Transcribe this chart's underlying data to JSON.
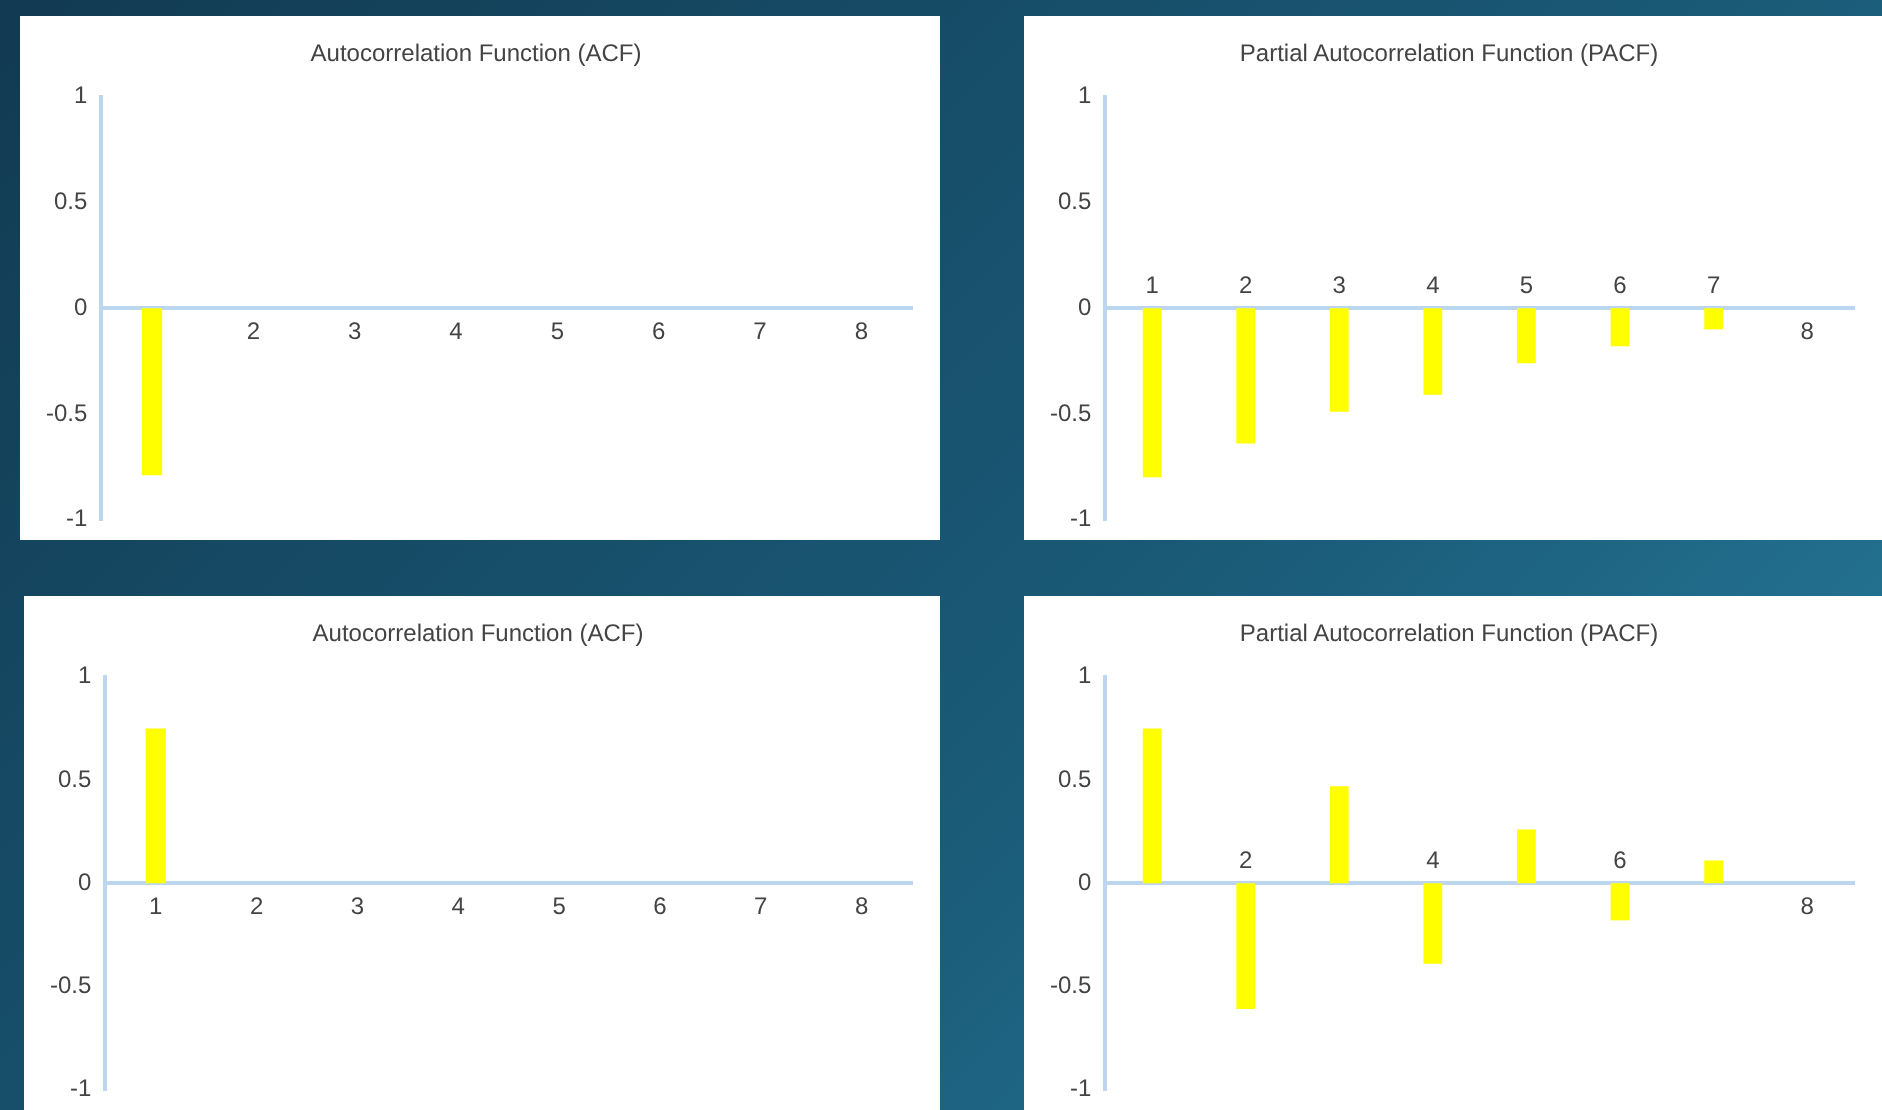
{
  "chart_data": [
    {
      "type": "bar",
      "title": "Autocorrelation Function (ACF)",
      "categories": [
        null,
        "2",
        "3",
        "4",
        "5",
        "6",
        "7",
        "8"
      ],
      "values": [
        -0.79,
        0,
        0,
        0,
        0,
        0,
        0,
        0
      ],
      "color": "#ffff00",
      "ylim": [
        -1,
        1
      ],
      "yticks": [
        -1,
        -0.5,
        0,
        0.5,
        1
      ],
      "grid": false
    },
    {
      "type": "bar",
      "title": "Partial Autocorrelation Function (PACF)",
      "categories": [
        "1",
        "2",
        "3",
        "4",
        "5",
        "6",
        "7",
        "8"
      ],
      "values": [
        -0.8,
        -0.64,
        -0.49,
        -0.41,
        -0.26,
        -0.18,
        -0.1,
        0
      ],
      "color": "#ffff00",
      "ylim": [
        -1,
        1
      ],
      "yticks": [
        -1,
        -0.5,
        0,
        0.5,
        1
      ],
      "grid": false
    },
    {
      "type": "bar",
      "title": "Autocorrelation Function (ACF)",
      "categories": [
        "1",
        "2",
        "3",
        "4",
        "5",
        "6",
        "7",
        "8"
      ],
      "values": [
        0.75,
        0,
        0,
        0,
        0,
        0,
        0,
        0
      ],
      "color": "#ffff00",
      "ylim": [
        -1,
        1
      ],
      "yticks": [
        -1,
        -0.5,
        0,
        0.5,
        1
      ],
      "grid": false
    },
    {
      "type": "bar",
      "title": "Partial Autocorrelation Function (PACF)",
      "categories": [
        null,
        "2",
        null,
        "4",
        null,
        "6",
        null,
        "8"
      ],
      "values": [
        0.75,
        -0.61,
        0.47,
        -0.39,
        0.26,
        -0.18,
        0.11,
        0
      ],
      "color": "#ffff00",
      "ylim": [
        -1,
        1
      ],
      "yticks": [
        -1,
        -0.5,
        0,
        0.5,
        1
      ],
      "grid": false
    }
  ]
}
